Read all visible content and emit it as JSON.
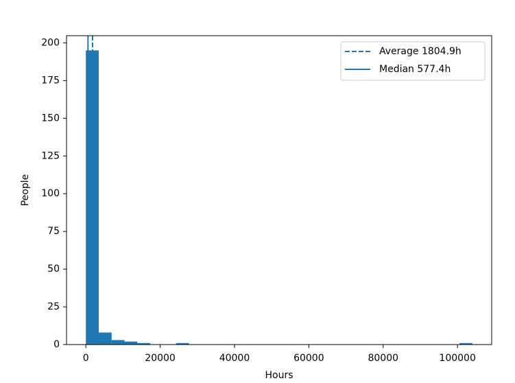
{
  "chart_data": {
    "type": "histogram",
    "x_label": "Hours",
    "y_label": "People",
    "bins": [
      0,
      3467,
      6933,
      10400,
      13867,
      17333,
      20800,
      24267,
      27733,
      31200,
      34667,
      38133,
      41600,
      45067,
      48533,
      52000,
      55467,
      58933,
      62400,
      65867,
      69333,
      72800,
      76267,
      79733,
      83200,
      86667,
      90133,
      93600,
      97067,
      100533,
      104000
    ],
    "values": [
      195,
      8,
      3,
      2,
      1,
      0,
      0,
      1,
      0,
      0,
      0,
      0,
      0,
      0,
      0,
      0,
      0,
      0,
      0,
      0,
      0,
      0,
      0,
      0,
      0,
      0,
      0,
      0,
      0,
      1
    ],
    "color": "#1f77b4",
    "lines": [
      {
        "name": "Average 1804.9h",
        "value": 1804.9,
        "style": "dashed",
        "color": "#1f77b4"
      },
      {
        "name": "Median 577.4h",
        "value": 577.4,
        "style": "solid",
        "color": "#1f77b4"
      }
    ],
    "xlim": [
      -5200,
      109200
    ],
    "xticks": [
      0,
      20000,
      40000,
      60000,
      80000,
      100000
    ],
    "ylim": [
      0,
      204.75
    ],
    "yticks": [
      0,
      25,
      50,
      75,
      100,
      125,
      150,
      175,
      200
    ],
    "legend": "upper right"
  }
}
